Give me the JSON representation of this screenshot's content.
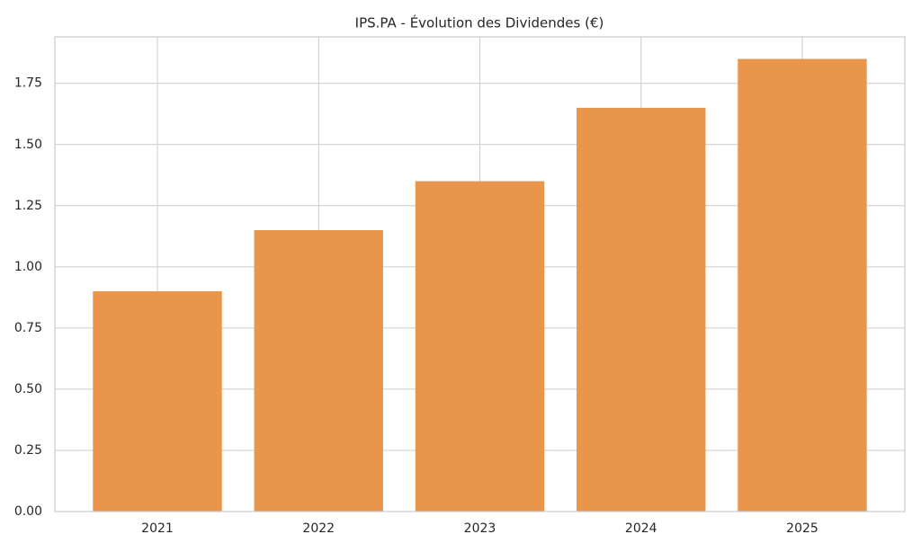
{
  "chart_data": {
    "type": "bar",
    "title": "IPS.PA - Évolution des Dividendes (€)",
    "categories": [
      "2021",
      "2022",
      "2023",
      "2024",
      "2025"
    ],
    "values": [
      0.9,
      1.15,
      1.35,
      1.65,
      1.85
    ],
    "color": "#e9954b",
    "ylim": [
      0,
      1.94
    ],
    "yticks": [
      {
        "value": 0,
        "label": "0.00"
      },
      {
        "value": 0.25,
        "label": "0.25"
      },
      {
        "value": 0.5,
        "label": "0.50"
      },
      {
        "value": 0.75,
        "label": "0.75"
      },
      {
        "value": 1,
        "label": "1.00"
      },
      {
        "value": 1.25,
        "label": "1.25"
      },
      {
        "value": 1.5,
        "label": "1.50"
      },
      {
        "value": 1.75,
        "label": "1.75"
      }
    ],
    "grid": true
  }
}
